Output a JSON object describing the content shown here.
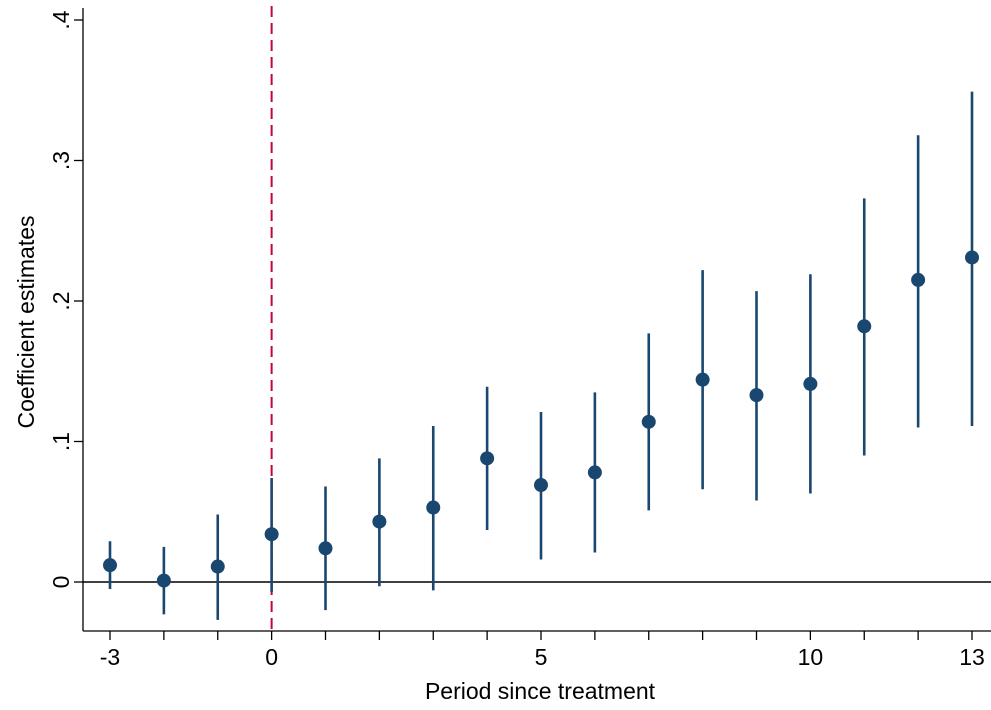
{
  "chart_data": {
    "type": "scatter",
    "title": "",
    "xlabel": "Period since treatment",
    "ylabel": "Coefficient estimates",
    "xlim": [
      -3,
      13
    ],
    "ylim": [
      -0.035,
      0.4
    ],
    "x_ticks": [
      -3,
      -2,
      -1,
      0,
      1,
      2,
      3,
      4,
      5,
      6,
      7,
      8,
      9,
      10,
      11,
      12,
      13
    ],
    "x_tick_labels": [
      {
        "value": -3,
        "label": "-3"
      },
      {
        "value": 0,
        "label": "0"
      },
      {
        "value": 5,
        "label": "5"
      },
      {
        "value": 10,
        "label": "10"
      },
      {
        "value": 13,
        "label": "13"
      }
    ],
    "y_ticks": [
      {
        "value": 0,
        "label": "0"
      },
      {
        "value": 0.1,
        "label": ".1"
      },
      {
        "value": 0.2,
        "label": ".2"
      },
      {
        "value": 0.3,
        "label": ".3"
      },
      {
        "value": 0.4,
        "label": ".4"
      }
    ],
    "reference_lines": {
      "horizontal_y": 0,
      "vertical_x": 0
    },
    "grid": false,
    "legend": "none",
    "colors": {
      "point": "#1a476f",
      "ci": "#1a476f",
      "vertical_line": "#c10534",
      "zero_line": "#000000"
    },
    "series": [
      {
        "x": [
          -3,
          -2,
          -1,
          0,
          1,
          2,
          3,
          4,
          5,
          6,
          7,
          8,
          9,
          10,
          11,
          12,
          13
        ],
        "estimate": [
          0.012,
          0.001,
          0.011,
          0.034,
          0.024,
          0.043,
          0.053,
          0.088,
          0.069,
          0.078,
          0.114,
          0.144,
          0.133,
          0.141,
          0.182,
          0.215,
          0.231
        ],
        "ci_lower": [
          -0.005,
          -0.023,
          -0.027,
          -0.007,
          -0.02,
          -0.003,
          -0.006,
          0.037,
          0.016,
          0.021,
          0.051,
          0.066,
          0.058,
          0.063,
          0.09,
          0.11,
          0.111
        ],
        "ci_upper": [
          0.029,
          0.025,
          0.048,
          0.074,
          0.068,
          0.088,
          0.111,
          0.139,
          0.121,
          0.135,
          0.177,
          0.222,
          0.207,
          0.219,
          0.273,
          0.318,
          0.349
        ]
      }
    ]
  }
}
